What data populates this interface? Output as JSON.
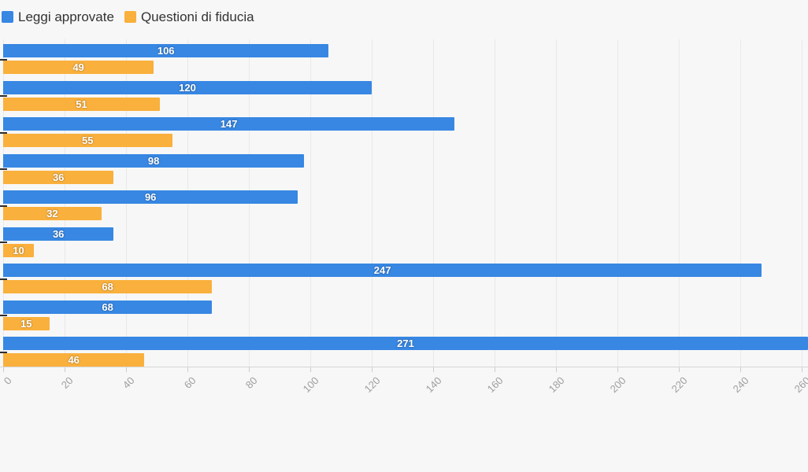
{
  "chart_data": {
    "type": "bar",
    "orientation": "horizontal",
    "title": "",
    "xlabel": "",
    "ylabel": "",
    "xlim": [
      0,
      262
    ],
    "xticks": [
      0,
      20,
      40,
      60,
      80,
      100,
      120,
      140,
      160,
      180,
      200,
      220,
      240,
      260
    ],
    "grid": true,
    "legend_position": "top-left",
    "value_labels": "inside-center-white-bold",
    "series": [
      {
        "name": "Leggi approvate",
        "color": "#3787e3",
        "values": [
          106,
          120,
          147,
          98,
          96,
          36,
          247,
          68,
          271
        ]
      },
      {
        "name": "Questioni di fiducia",
        "color": "#fab03c",
        "values": [
          49,
          51,
          55,
          36,
          32,
          10,
          68,
          15,
          46
        ]
      }
    ],
    "colors": {
      "background": "#f7f7f7",
      "gridline": "#e9e9e9",
      "axis_line": "#d6d6d6",
      "axis_tick": "#cccccc",
      "axis_label": "#9e9e9e",
      "legend_text": "#333333",
      "bar_value_text": "#ffffff",
      "category_tick": "#2e2e2e"
    }
  }
}
